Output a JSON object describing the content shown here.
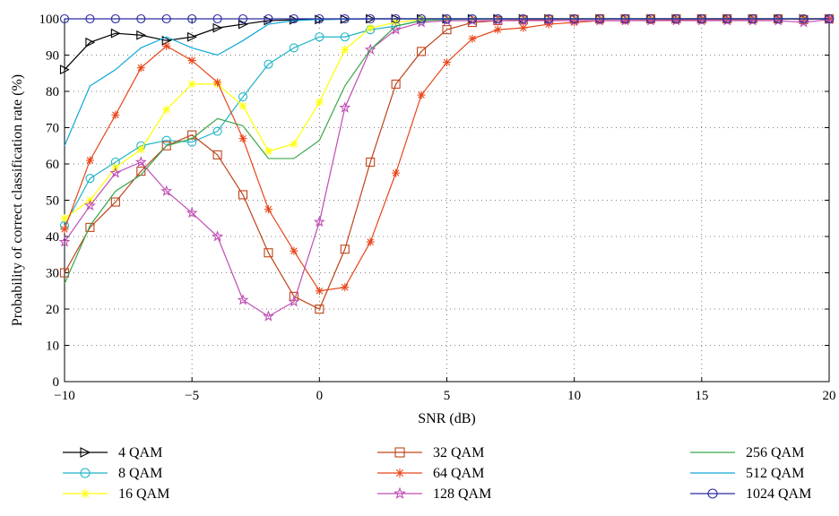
{
  "chart_data": {
    "type": "line",
    "title": "",
    "xlabel": "SNR (dB)",
    "ylabel": "Probability of correct classification rate (%)",
    "xlim": [
      -10,
      20
    ],
    "ylim": [
      0,
      100
    ],
    "xticks": [
      -10,
      -5,
      0,
      5,
      10,
      15,
      20
    ],
    "yticks": [
      0,
      10,
      20,
      30,
      40,
      50,
      60,
      70,
      80,
      90,
      100
    ],
    "xtick_labels": [
      "−10",
      "−5",
      "0",
      "5",
      "10",
      "15",
      "20"
    ],
    "ytick_labels": [
      "0",
      "10",
      "20",
      "30",
      "40",
      "50",
      "60",
      "70",
      "80",
      "90",
      "100"
    ],
    "grid": true,
    "legend_position": "bottom",
    "x": [
      -10,
      -9,
      -8,
      -7,
      -6,
      -5,
      -4,
      -3,
      -2,
      -1,
      0,
      1,
      2,
      3,
      4,
      5,
      6,
      7,
      8,
      9,
      10,
      11,
      12,
      13,
      14,
      15,
      16,
      17,
      18,
      19,
      20
    ],
    "series": [
      {
        "name": "4 QAM",
        "color": "#000000",
        "marker": "triangle-right",
        "values": [
          86,
          93.5,
          96,
          95.5,
          94,
          95,
          97.5,
          98.5,
          99.5,
          99.7,
          99.8,
          99.9,
          100,
          100,
          100,
          100,
          100,
          100,
          100,
          100,
          100,
          100,
          100,
          100,
          100,
          100,
          100,
          100,
          100,
          100,
          100
        ]
      },
      {
        "name": "8 QAM",
        "color": "#1fb5c8",
        "marker": "circle",
        "values": [
          43,
          56,
          60.5,
          65,
          66.5,
          66,
          69,
          78.5,
          87.5,
          92,
          95,
          95,
          97,
          98,
          99.5,
          100,
          100,
          100,
          100,
          100,
          100,
          100,
          100,
          100,
          100,
          100,
          100,
          100,
          100,
          100,
          100
        ]
      },
      {
        "name": "16 QAM",
        "color": "#ffff00",
        "marker": "asterisk",
        "values": [
          45,
          50,
          59,
          64,
          75,
          82,
          82,
          76,
          63.5,
          65.5,
          77,
          91.5,
          97.5,
          99,
          99.8,
          100,
          100,
          100,
          100,
          100,
          100,
          100,
          100,
          100,
          100,
          100,
          100,
          100,
          100,
          100,
          100
        ]
      },
      {
        "name": "32 QAM",
        "color": "#c0431a",
        "marker": "square",
        "values": [
          30,
          42.5,
          49.5,
          58,
          65,
          68,
          62.5,
          51.5,
          35.5,
          23.5,
          20,
          36.5,
          60.5,
          82,
          91,
          97,
          99,
          99.5,
          99.7,
          99.8,
          99.9,
          100,
          100,
          100,
          100,
          100,
          100,
          100,
          100,
          99.8,
          100
        ]
      },
      {
        "name": "64 QAM",
        "color": "#e8461a",
        "marker": "asterisk",
        "values": [
          42,
          61,
          73.5,
          86.5,
          92.5,
          88.5,
          82.5,
          67,
          47.5,
          36,
          25,
          26,
          38.5,
          57.5,
          79,
          88,
          94.5,
          97,
          97.5,
          98.5,
          99,
          99.5,
          99.5,
          99.6,
          99.7,
          99.8,
          99.8,
          99.8,
          99.9,
          99.9,
          100
        ]
      },
      {
        "name": "128 QAM",
        "color": "#c04cb4",
        "marker": "star",
        "values": [
          38.5,
          48.5,
          57.5,
          60.5,
          52.5,
          46.5,
          40,
          22.5,
          18,
          22,
          44,
          75.5,
          91.5,
          97,
          99,
          99.5,
          99.5,
          99.5,
          99.5,
          99.5,
          99.5,
          99.5,
          99.5,
          99.5,
          99.5,
          99.5,
          99.5,
          99.5,
          99.5,
          99,
          99.8
        ]
      },
      {
        "name": "256 QAM",
        "color": "#3aa64a",
        "marker": "none",
        "values": [
          27,
          43,
          52.5,
          57,
          65,
          67,
          72.5,
          70.5,
          61.5,
          61.5,
          66.5,
          81.5,
          91.5,
          98,
          99.5,
          99.8,
          99.9,
          100,
          100,
          100,
          100,
          100,
          100,
          100,
          100,
          100,
          100,
          100,
          100,
          100,
          100
        ]
      },
      {
        "name": "512 QAM",
        "color": "#0ea7d6",
        "marker": "none",
        "values": [
          65,
          81.5,
          86,
          92,
          95,
          92,
          90,
          94,
          98.5,
          99.5,
          99.8,
          99.9,
          100,
          100,
          100,
          100,
          100,
          100,
          100,
          100,
          100,
          100,
          100,
          100,
          100,
          100,
          100,
          100,
          100,
          100,
          100
        ]
      },
      {
        "name": "1024 QAM",
        "color": "#2a2aa0",
        "marker": "circle",
        "values": [
          100,
          100,
          100,
          100,
          100,
          100,
          100,
          100,
          100,
          100,
          100,
          100,
          100,
          100,
          100,
          100,
          100,
          100,
          100,
          100,
          100,
          100,
          100,
          100,
          100,
          100,
          100,
          100,
          100,
          100,
          100
        ]
      }
    ]
  }
}
